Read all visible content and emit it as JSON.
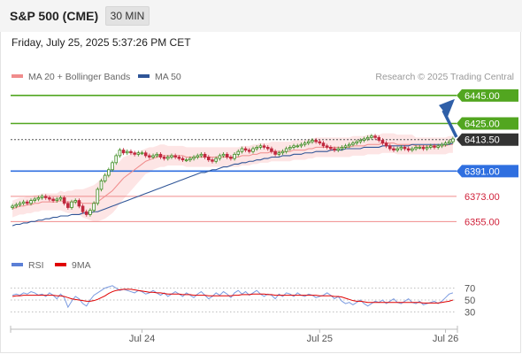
{
  "header": {
    "title": "S&P 500 (CME)",
    "timeframe": "30 MIN"
  },
  "datetime": "Friday, July 25, 2025 5:37:26 PM CET",
  "legend": [
    {
      "label": "MA 20 + Bollinger Bands",
      "color": "#f08c8c"
    },
    {
      "label": "MA 50",
      "color": "#2f5597"
    }
  ],
  "credit": "Research © 2025 Trading Central",
  "rsi_legend": [
    {
      "label": "RSI",
      "color": "#5b7fd6"
    },
    {
      "label": "9MA",
      "color": "#e00000"
    }
  ],
  "colors": {
    "up": "#3a8a1e",
    "down": "#c0283e",
    "resistance": "#52a620",
    "current": "#333333",
    "pivot": "#2f6fe0",
    "support": "#f08c8c",
    "arrow": "#2f5fa8"
  },
  "chart_data": [
    {
      "type": "candlestick",
      "description_note": "",
      "y_range": [
        6335,
        6455
      ],
      "x_labels": [
        {
          "text": "Jul 24",
          "index": 35
        },
        {
          "text": "Jul 25",
          "index": 83
        },
        {
          "text": "Jul 26",
          "index": 117
        }
      ],
      "levels": [
        {
          "value": 6445.0,
          "label": "6445.00",
          "kind": "resistance"
        },
        {
          "value": 6425.0,
          "label": "6425.00",
          "kind": "resistance"
        },
        {
          "value": 6413.5,
          "label": "6413.50",
          "kind": "current"
        },
        {
          "value": 6391.0,
          "label": "6391.00",
          "kind": "pivot"
        },
        {
          "value": 6373.0,
          "label": "6373.00",
          "kind": "support"
        },
        {
          "value": 6355.0,
          "label": "6355.00",
          "kind": "support"
        }
      ],
      "close": [
        6366,
        6367,
        6368,
        6369,
        6368,
        6370,
        6371,
        6372,
        6373,
        6372,
        6371,
        6370,
        6371,
        6372,
        6368,
        6365,
        6369,
        6370,
        6366,
        6362,
        6360,
        6363,
        6368,
        6378,
        6384,
        6388,
        6392,
        6397,
        6402,
        6406,
        6404,
        6405,
        6404,
        6403,
        6404,
        6404,
        6402,
        6401,
        6402,
        6403,
        6401,
        6400,
        6401,
        6402,
        6401,
        6400,
        6399,
        6399,
        6400,
        6401,
        6402,
        6403,
        6401,
        6399,
        6398,
        6400,
        6402,
        6403,
        6401,
        6400,
        6403,
        6405,
        6407,
        6406,
        6405,
        6407,
        6408,
        6409,
        6408,
        6407,
        6405,
        6403,
        6404,
        6405,
        6407,
        6408,
        6409,
        6409,
        6410,
        6411,
        6412,
        6413,
        6412,
        6411,
        6409,
        6408,
        6407,
        6406,
        6407,
        6408,
        6409,
        6410,
        6411,
        6412,
        6413,
        6414,
        6415,
        6416,
        6415,
        6413,
        6411,
        6409,
        6407,
        6406,
        6407,
        6408,
        6407,
        6406,
        6407,
        6408,
        6408,
        6407,
        6408,
        6409,
        6408,
        6409,
        6410,
        6411,
        6412,
        6414
      ],
      "ma20": [
        6364,
        6365,
        6366,
        6366,
        6367,
        6367,
        6368,
        6368,
        6369,
        6369,
        6369,
        6369,
        6369,
        6370,
        6369,
        6369,
        6369,
        6369,
        6369,
        6368,
        6368,
        6368,
        6368,
        6369,
        6371,
        6373,
        6375,
        6377,
        6380,
        6383,
        6386,
        6388,
        6390,
        6392,
        6394,
        6396,
        6398,
        6399,
        6400,
        6401,
        6402,
        6402,
        6402,
        6402,
        6402,
        6402,
        6402,
        6401,
        6401,
        6401,
        6401,
        6401,
        6401,
        6401,
        6401,
        6401,
        6401,
        6401,
        6401,
        6401,
        6401,
        6401,
        6402,
        6402,
        6402,
        6403,
        6403,
        6404,
        6404,
        6404,
        6405,
        6405,
        6405,
        6405,
        6405,
        6405,
        6406,
        6406,
        6406,
        6406,
        6407,
        6407,
        6408,
        6408,
        6408,
        6408,
        6408,
        6408,
        6408,
        6408,
        6408,
        6408,
        6409,
        6409,
        6409,
        6409,
        6410,
        6410,
        6410,
        6410,
        6411,
        6411,
        6411,
        6411,
        6410,
        6410,
        6410,
        6410,
        6410,
        6409,
        6409,
        6409,
        6409,
        6409,
        6409,
        6409,
        6409,
        6409,
        6410,
        6410
      ],
      "ma50": [
        6352,
        6353,
        6353,
        6354,
        6354,
        6355,
        6355,
        6356,
        6356,
        6357,
        6357,
        6358,
        6358,
        6359,
        6359,
        6359,
        6360,
        6360,
        6360,
        6361,
        6361,
        6361,
        6362,
        6362,
        6363,
        6364,
        6365,
        6366,
        6367,
        6368,
        6369,
        6370,
        6371,
        6372,
        6373,
        6374,
        6375,
        6376,
        6377,
        6378,
        6379,
        6380,
        6381,
        6382,
        6383,
        6384,
        6385,
        6386,
        6387,
        6388,
        6389,
        6390,
        6390,
        6391,
        6392,
        6392,
        6393,
        6394,
        6394,
        6395,
        6396,
        6396,
        6397,
        6397,
        6398,
        6398,
        6399,
        6399,
        6400,
        6400,
        6401,
        6401,
        6401,
        6402,
        6402,
        6402,
        6403,
        6403,
        6403,
        6404,
        6404,
        6404,
        6405,
        6405,
        6405,
        6405,
        6406,
        6406,
        6406,
        6406,
        6407,
        6407,
        6407,
        6407,
        6407,
        6408,
        6408,
        6408,
        6408,
        6408,
        6409,
        6409,
        6409,
        6409,
        6409,
        6409,
        6409,
        6409,
        6410,
        6410,
        6410,
        6410,
        6410,
        6410,
        6410,
        6410,
        6410,
        6410,
        6410,
        6411
      ],
      "bb_width": [
        6,
        6,
        6,
        6,
        6,
        6,
        6,
        6,
        6,
        6,
        6,
        6,
        6,
        7,
        7,
        8,
        8,
        9,
        9,
        10,
        11,
        12,
        13,
        14,
        15,
        16,
        16,
        16,
        16,
        15,
        15,
        14,
        13,
        12,
        11,
        10,
        9,
        9,
        8,
        8,
        8,
        8,
        7,
        7,
        7,
        7,
        7,
        7,
        7,
        7,
        7,
        7,
        7,
        7,
        7,
        7,
        7,
        7,
        7,
        7,
        7,
        7,
        7,
        7,
        7,
        7,
        7,
        7,
        7,
        7,
        7,
        7,
        7,
        7,
        7,
        7,
        7,
        7,
        7,
        7,
        7,
        7,
        7,
        7,
        7,
        7,
        7,
        7,
        7,
        7,
        7,
        7,
        7,
        7,
        7,
        7,
        7,
        7,
        7,
        7,
        7,
        7,
        7,
        7,
        7,
        7,
        7,
        7,
        7,
        6,
        6,
        6,
        6,
        6,
        6,
        6,
        6,
        6,
        6,
        6
      ],
      "rsi_axis": [
        30,
        50,
        70
      ],
      "rsi": [
        58,
        60,
        58,
        62,
        60,
        64,
        62,
        58,
        60,
        56,
        62,
        58,
        52,
        60,
        54,
        38,
        48,
        56,
        52,
        44,
        40,
        50,
        58,
        62,
        66,
        70,
        72,
        74,
        70,
        66,
        68,
        66,
        64,
        62,
        66,
        64,
        60,
        62,
        66,
        62,
        58,
        62,
        56,
        60,
        64,
        60,
        56,
        62,
        58,
        54,
        60,
        64,
        58,
        52,
        56,
        62,
        58,
        64,
        60,
        54,
        62,
        66,
        60,
        64,
        58,
        62,
        66,
        60,
        56,
        60,
        58,
        52,
        60,
        56,
        62,
        60,
        56,
        62,
        58,
        56,
        60,
        58,
        54,
        56,
        58,
        62,
        58,
        52,
        56,
        48,
        44,
        46,
        42,
        46,
        50,
        44,
        40,
        44,
        48,
        46,
        50,
        44,
        48,
        52,
        46,
        44,
        48,
        52,
        46,
        44,
        48,
        42,
        44,
        46,
        48,
        44,
        48,
        54,
        60,
        62
      ],
      "rsi_ma": [
        56,
        57,
        57,
        58,
        58,
        58,
        58,
        58,
        58,
        58,
        58,
        58,
        57,
        57,
        56,
        54,
        52,
        51,
        50,
        49,
        48,
        48,
        49,
        51,
        54,
        57,
        61,
        64,
        66,
        67,
        68,
        68,
        68,
        67,
        66,
        65,
        64,
        63,
        63,
        62,
        62,
        61,
        60,
        60,
        60,
        60,
        59,
        59,
        59,
        58,
        58,
        58,
        58,
        57,
        57,
        57,
        57,
        57,
        57,
        57,
        58,
        58,
        59,
        59,
        59,
        60,
        60,
        60,
        60,
        59,
        59,
        58,
        58,
        58,
        58,
        58,
        58,
        58,
        58,
        58,
        58,
        58,
        58,
        57,
        57,
        57,
        57,
        56,
        56,
        55,
        53,
        51,
        49,
        48,
        48,
        47,
        46,
        46,
        46,
        46,
        46,
        46,
        46,
        46,
        46,
        46,
        46,
        46,
        46,
        46,
        46,
        45,
        45,
        45,
        45,
        45,
        46,
        47,
        48,
        50
      ]
    }
  ]
}
